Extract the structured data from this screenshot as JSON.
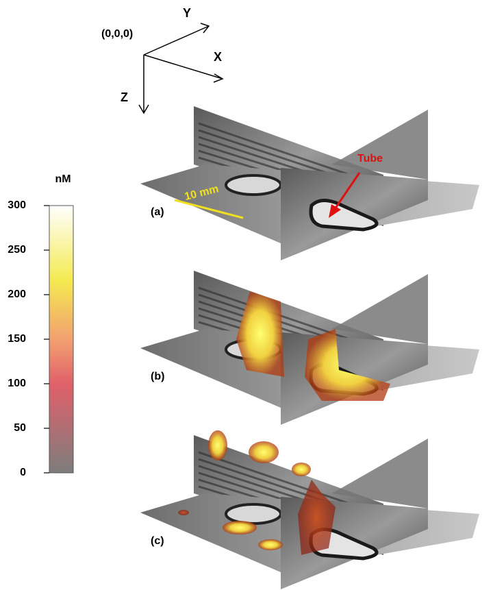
{
  "axes": {
    "origin": "(0,0,0)",
    "x": "X",
    "y": "Y",
    "z": "Z"
  },
  "colorbar": {
    "unit": "nM",
    "range": [
      0,
      300
    ],
    "ticks": [
      0,
      50,
      100,
      150,
      200,
      250,
      300
    ]
  },
  "panels": [
    {
      "label": "(a)",
      "scale_label": "10 mm",
      "annotation": "Tube"
    },
    {
      "label": "(b)"
    },
    {
      "label": "(c)"
    }
  ]
}
